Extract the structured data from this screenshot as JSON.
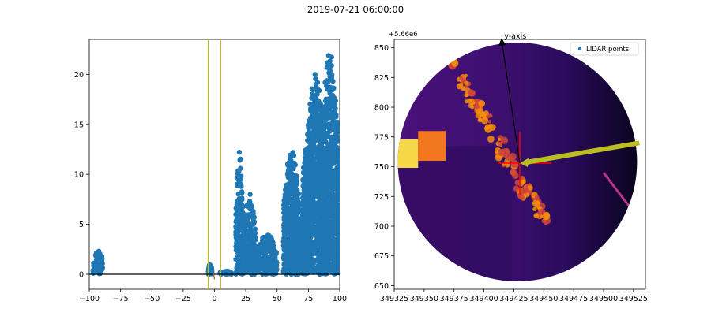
{
  "figure_title": "2019-07-21 06:00:00",
  "chart_data": [
    {
      "type": "scatter",
      "title": "",
      "xlabel": "",
      "ylabel": "",
      "xlim": [
        -100,
        100
      ],
      "ylim": [
        -1.5,
        23.5
      ],
      "xticks": [
        -100,
        -75,
        -50,
        -25,
        0,
        25,
        50,
        75,
        100
      ],
      "yticks": [
        0,
        5,
        10,
        15,
        20
      ],
      "marker_color": "#1f77b4",
      "vlines": {
        "x": [
          -5,
          5
        ],
        "color": "#bcbd22"
      },
      "hline": {
        "y": 0,
        "color": "#000000"
      },
      "small_segment": {
        "x": [
          -1,
          0
        ],
        "y": [
          0.3,
          -0.5
        ],
        "color": "#8c564b"
      },
      "clusters": [
        {
          "x": [
            -97,
            -89
          ],
          "ymin": 0,
          "ymax": 2.6
        },
        {
          "x": [
            -5,
            -2
          ],
          "ymin": 0,
          "ymax": 1.0
        },
        {
          "x": [
            4,
            14
          ],
          "ymin": 0,
          "ymax": 0.4
        },
        {
          "x": [
            17,
            23
          ],
          "ymin": 0,
          "ymax": 12.8
        },
        {
          "x": [
            23,
            33
          ],
          "ymin": 0,
          "ymax": 8.3
        },
        {
          "x": [
            33,
            50
          ],
          "ymin": 0,
          "ymax": 4.2
        },
        {
          "x": [
            55,
            68
          ],
          "ymin": 0,
          "ymax": 13.1
        },
        {
          "x": [
            60,
            72
          ],
          "ymin": 0,
          "ymax": 6.0
        },
        {
          "x": [
            70,
            76
          ],
          "ymin": 0,
          "ymax": 14.3
        },
        {
          "x": [
            72,
            90
          ],
          "ymin": 0,
          "ymax": 21.0
        },
        {
          "x": [
            84,
            100
          ],
          "ymin": 0,
          "ymax": 22.5
        }
      ]
    },
    {
      "type": "heatmap",
      "title": "",
      "xlim": [
        349325,
        349535
      ],
      "ylim": [
        647,
        857
      ],
      "xticks": [
        349325,
        349350,
        349375,
        349400,
        349425,
        349450,
        349475,
        349500,
        349525
      ],
      "yticks": [
        650,
        675,
        700,
        725,
        750,
        775,
        800,
        825,
        850
      ],
      "y_offset_label": "+5.66e6",
      "legend": {
        "placement": "top-right",
        "entries": [
          "LIDAR points"
        ]
      },
      "annotation": "y-axis",
      "disc": {
        "center": [
          349428,
          754
        ],
        "radius": 100
      },
      "center_marker": {
        "x": 349430,
        "y": 753,
        "color": "#ff0000"
      },
      "heading_arrow": {
        "from": [
          349530,
          770
        ],
        "to": [
          349430,
          753
        ],
        "color": "#bcbd22"
      },
      "y_axis_arrow": {
        "from": [
          349430,
          753
        ],
        "to": [
          349415,
          855
        ],
        "color": "#000000"
      }
    }
  ]
}
